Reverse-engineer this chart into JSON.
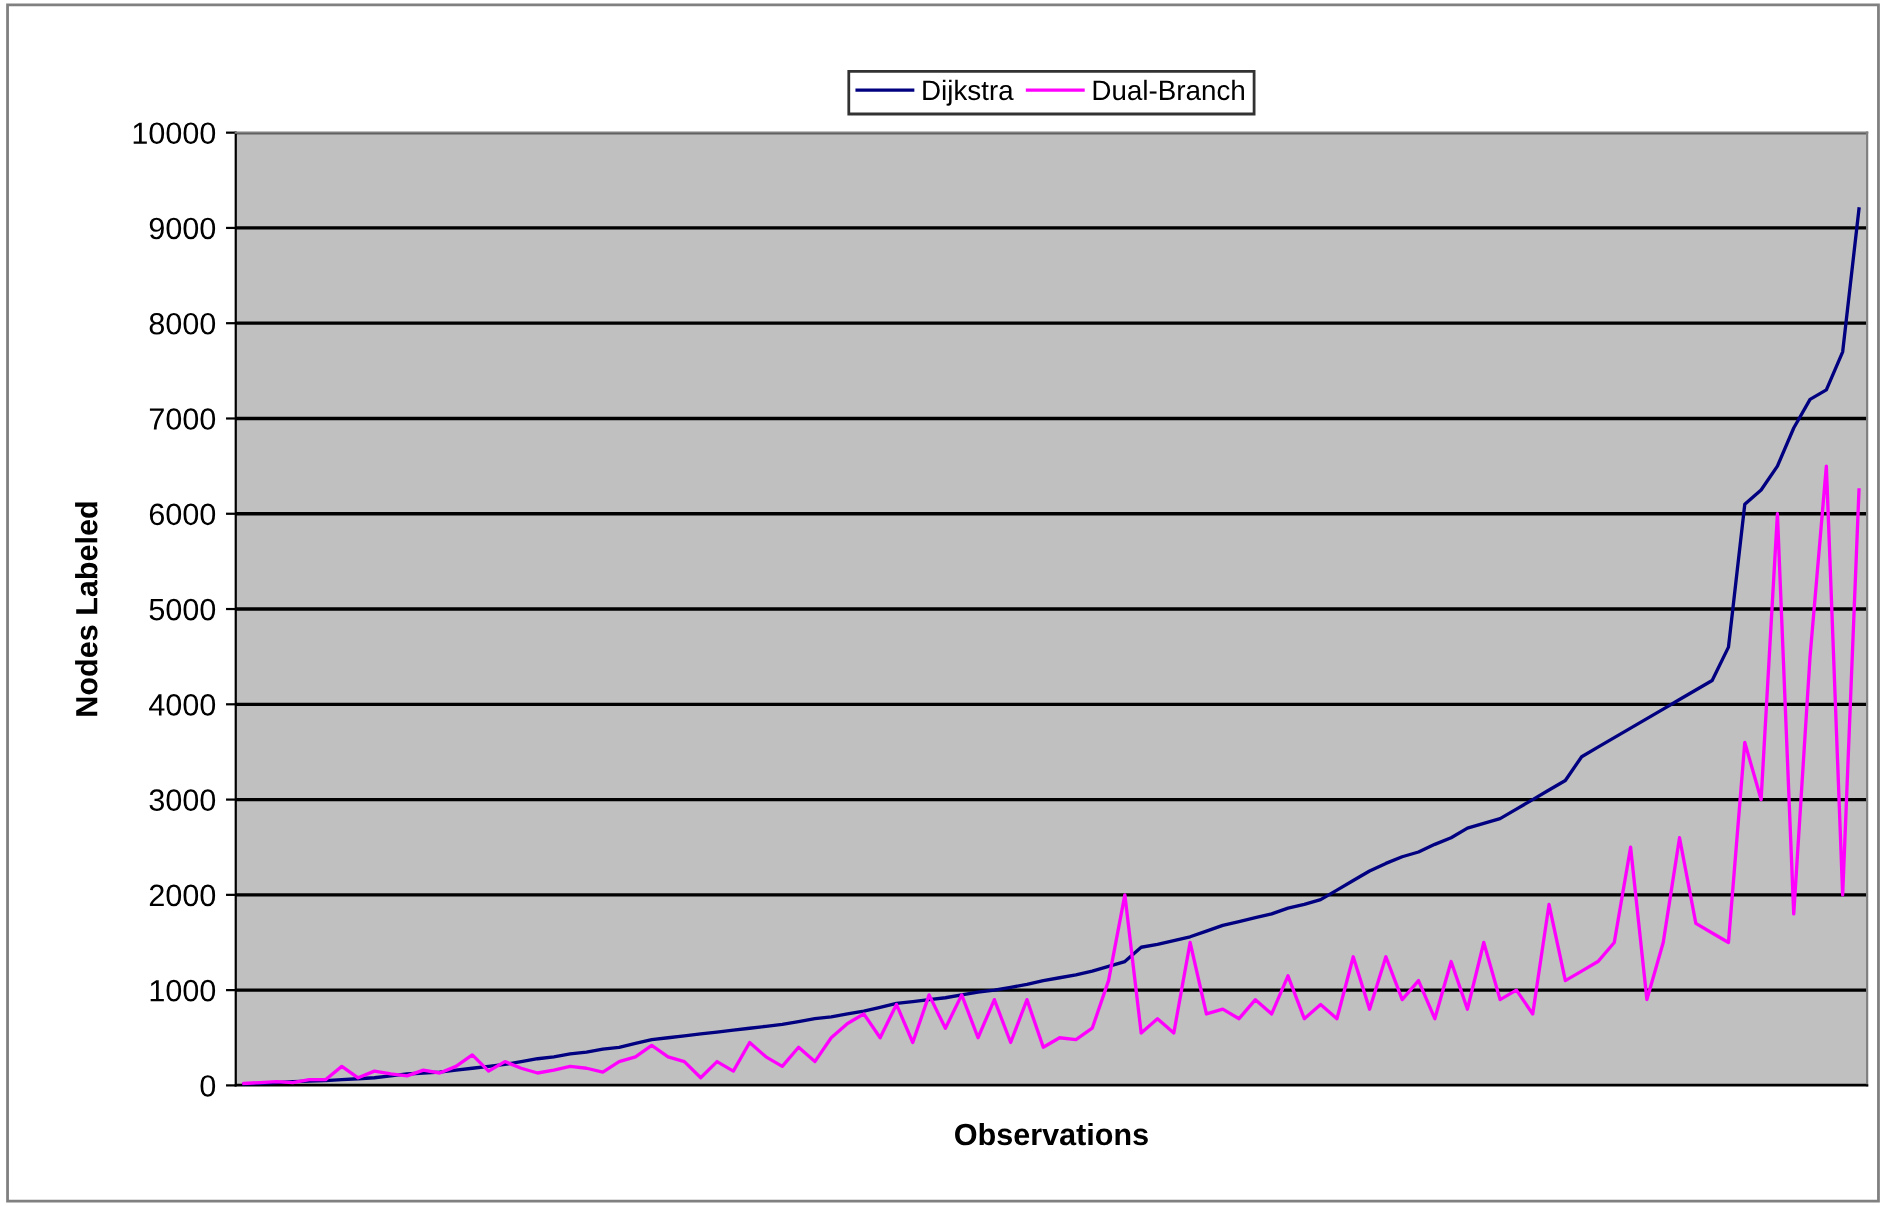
{
  "chart_data": {
    "type": "line",
    "xlabel": "Observations",
    "ylabel": "Nodes Labeled",
    "categories": [
      null,
      null,
      null,
      null,
      null,
      null,
      null,
      null,
      null,
      null,
      null,
      null,
      null,
      null,
      null,
      null,
      null,
      null,
      null,
      null,
      null,
      null,
      null,
      null,
      null,
      null,
      null,
      null,
      null,
      null,
      null,
      null,
      null,
      null,
      null,
      null,
      null,
      null,
      null,
      null,
      null,
      null,
      null,
      null,
      null,
      null,
      null,
      null,
      null,
      null,
      null,
      null,
      null,
      null,
      null,
      null,
      null,
      null,
      null,
      null,
      null,
      null,
      null,
      null,
      null,
      null,
      null,
      null,
      null,
      null,
      null,
      null,
      null,
      null,
      null,
      null,
      null,
      null,
      null,
      null,
      null,
      null,
      null,
      null,
      null,
      null,
      null,
      null,
      null,
      null,
      null,
      null,
      null,
      null,
      null,
      null,
      null,
      null,
      null,
      null
    ],
    "series": [
      {
        "name": "Dijkstra",
        "color": "#000080",
        "values": [
          10,
          20,
          30,
          40,
          45,
          50,
          60,
          70,
          80,
          100,
          120,
          130,
          140,
          160,
          180,
          200,
          220,
          250,
          280,
          300,
          330,
          350,
          380,
          400,
          440,
          480,
          500,
          520,
          540,
          560,
          580,
          600,
          620,
          640,
          670,
          700,
          720,
          750,
          780,
          820,
          860,
          880,
          900,
          920,
          950,
          980,
          1000,
          1030,
          1060,
          1100,
          1130,
          1160,
          1200,
          1250,
          1300,
          1450,
          1480,
          1520,
          1560,
          1620,
          1680,
          1720,
          1760,
          1800,
          1860,
          1900,
          1950,
          2050,
          2150,
          2250,
          2330,
          2400,
          2450,
          2530,
          2600,
          2700,
          2750,
          2800,
          2900,
          3000,
          3100,
          3200,
          3450,
          3550,
          3650,
          3750,
          3850,
          3950,
          4050,
          4150,
          4250,
          4600,
          6100,
          6250,
          6500,
          6900,
          7200,
          7300,
          7700,
          9200
        ]
      },
      {
        "name": "Dual-Branch",
        "color": "#ff00ff",
        "values": [
          20,
          30,
          40,
          30,
          60,
          60,
          200,
          80,
          150,
          120,
          100,
          160,
          130,
          200,
          320,
          150,
          250,
          180,
          130,
          160,
          200,
          180,
          140,
          250,
          300,
          420,
          300,
          250,
          80,
          250,
          150,
          450,
          300,
          200,
          400,
          250,
          500,
          650,
          750,
          500,
          850,
          450,
          950,
          600,
          950,
          500,
          900,
          450,
          900,
          400,
          500,
          480,
          600,
          1100,
          2000,
          550,
          700,
          550,
          1500,
          750,
          800,
          700,
          900,
          750,
          1150,
          700,
          850,
          700,
          1350,
          800,
          1350,
          900,
          1100,
          700,
          1300,
          800,
          1500,
          900,
          1000,
          750,
          1900,
          1100,
          1200,
          1300,
          1500,
          2500,
          900,
          1500,
          2600,
          1700,
          1600,
          1500,
          3600,
          3000,
          6000,
          1800,
          4500,
          6500,
          2000,
          6250
        ]
      }
    ],
    "ylim": [
      0,
      10000
    ],
    "yticks": [
      0,
      1000,
      2000,
      3000,
      4000,
      5000,
      6000,
      7000,
      8000,
      9000,
      10000
    ],
    "grid": "y",
    "legend": "top",
    "marker": "none",
    "line_style": "solid"
  }
}
